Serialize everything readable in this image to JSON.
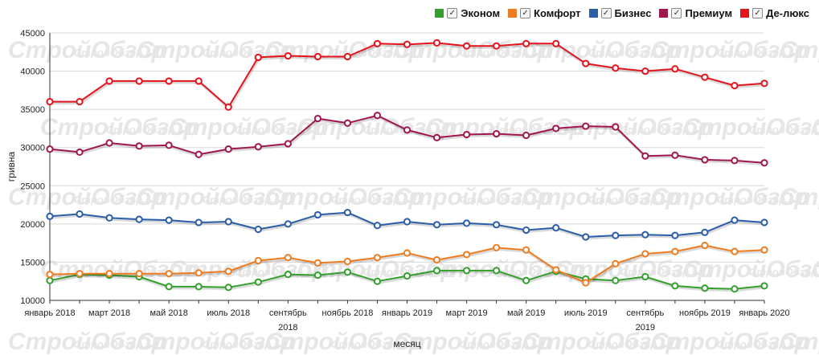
{
  "chart_data": {
    "type": "line",
    "title": "",
    "xlabel": "месяц",
    "ylabel": "гривна",
    "ylim": [
      10000,
      45000
    ],
    "yticks": [
      10000,
      15000,
      20000,
      25000,
      30000,
      35000,
      40000,
      45000
    ],
    "categories": [
      "2018-01",
      "2018-02",
      "2018-03",
      "2018-04",
      "2018-05",
      "2018-06",
      "2018-07",
      "2018-08",
      "2018-09",
      "2018-10",
      "2018-11",
      "2018-12",
      "2019-01",
      "2019-02",
      "2019-03",
      "2019-04",
      "2019-05",
      "2019-06",
      "2019-07",
      "2019-08",
      "2019-09",
      "2019-10",
      "2019-11",
      "2019-12",
      "2020-01"
    ],
    "tick_labels": [
      {
        "index": 0,
        "label": "январь 2018"
      },
      {
        "index": 2,
        "label": "март 2018"
      },
      {
        "index": 4,
        "label": "май 2018"
      },
      {
        "index": 6,
        "label": "июль 2018"
      },
      {
        "index": 8,
        "label": "сентябрь",
        "sublabel": "2018"
      },
      {
        "index": 10,
        "label": "ноябрь 2018"
      },
      {
        "index": 12,
        "label": "январь 2019"
      },
      {
        "index": 14,
        "label": "март 2019"
      },
      {
        "index": 16,
        "label": "май 2019"
      },
      {
        "index": 18,
        "label": "июль 2019"
      },
      {
        "index": 20,
        "label": "сентябрь",
        "sublabel": "2019"
      },
      {
        "index": 22,
        "label": "ноябрь 2019"
      },
      {
        "index": 24,
        "label": "январь 2020"
      }
    ],
    "series": [
      {
        "name": "Эконом",
        "color": "#34a02c",
        "values": [
          12600,
          13400,
          13300,
          13100,
          11800,
          11800,
          11700,
          12400,
          13400,
          13300,
          13700,
          12500,
          13200,
          13900,
          13900,
          13900,
          12600,
          13800,
          12800,
          12600,
          13100,
          11900,
          11600,
          11500,
          11900
        ]
      },
      {
        "name": "Комфорт",
        "color": "#ee7d22",
        "values": [
          13400,
          13500,
          13500,
          13500,
          13500,
          13600,
          13800,
          15200,
          15600,
          14900,
          15100,
          15600,
          16200,
          15300,
          16000,
          16900,
          16600,
          14000,
          12300,
          14800,
          16100,
          16400,
          17200,
          16400,
          16600
        ]
      },
      {
        "name": "Бизнес",
        "color": "#2a5ea8",
        "values": [
          21000,
          21300,
          20800,
          20600,
          20500,
          20200,
          20300,
          19300,
          20000,
          21200,
          21500,
          19800,
          20300,
          19900,
          20100,
          19900,
          19200,
          19500,
          18300,
          18500,
          18600,
          18500,
          18900,
          20500,
          20200
        ]
      },
      {
        "name": "Премиум",
        "color": "#a0174e",
        "values": [
          29800,
          29400,
          30600,
          30200,
          30300,
          29100,
          29800,
          30100,
          30500,
          33800,
          33200,
          34200,
          32300,
          31300,
          31700,
          31800,
          31600,
          32500,
          32800,
          32700,
          28900,
          29000,
          28400,
          28300,
          28000
        ]
      },
      {
        "name": "Де-люкс",
        "color": "#e3141c",
        "values": [
          36000,
          36000,
          38700,
          38700,
          38700,
          38700,
          35300,
          41800,
          42000,
          41900,
          41900,
          43600,
          43500,
          43700,
          43300,
          43300,
          43600,
          43600,
          41000,
          40400,
          40000,
          40300,
          39200,
          38100,
          38400
        ]
      }
    ]
  },
  "legend": {
    "check_glyph": "✓"
  },
  "watermark": {
    "text": "СтройОбзор"
  }
}
